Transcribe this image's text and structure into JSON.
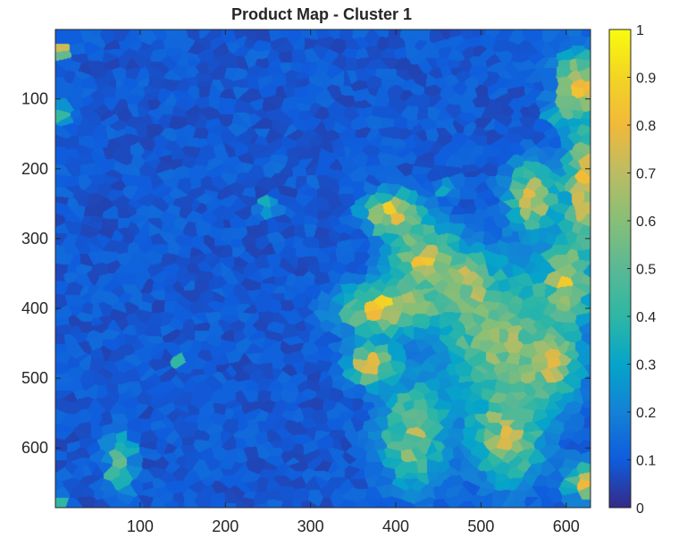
{
  "chart_data": {
    "type": "heatmap",
    "title": "Product Map - Cluster 1",
    "xlabel": "",
    "ylabel": "",
    "xlim": [
      0.5,
      628.5
    ],
    "ylim": [
      0.5,
      685.5
    ],
    "y_reversed": true,
    "x_ticks": [
      100,
      200,
      300,
      400,
      500,
      600
    ],
    "y_ticks": [
      100,
      200,
      300,
      400,
      500,
      600
    ],
    "x_tick_labels": [
      "100",
      "200",
      "300",
      "400",
      "500",
      "600"
    ],
    "y_tick_labels": [
      "100",
      "200",
      "300",
      "400",
      "500",
      "600"
    ],
    "colorbar": {
      "colormap": "parula",
      "clim": [
        0,
        1
      ],
      "ticks": [
        0,
        0.1,
        0.2,
        0.3,
        0.4,
        0.5,
        0.6,
        0.7,
        0.8,
        0.9,
        1
      ],
      "tick_labels": [
        "0",
        "0.1",
        "0.2",
        "0.3",
        "0.4",
        "0.5",
        "0.6",
        "0.7",
        "0.8",
        "0.9",
        "1"
      ]
    },
    "background_level": 0.05,
    "regions": [
      {
        "x": 520,
        "y": 440,
        "rx": 70,
        "ry": 110,
        "value": 0.6
      },
      {
        "x": 390,
        "y": 400,
        "rx": 60,
        "ry": 35,
        "value": 0.8
      },
      {
        "x": 430,
        "y": 330,
        "rx": 45,
        "ry": 55,
        "value": 0.72
      },
      {
        "x": 395,
        "y": 260,
        "rx": 35,
        "ry": 30,
        "value": 0.82
      },
      {
        "x": 560,
        "y": 240,
        "rx": 30,
        "ry": 50,
        "value": 0.75
      },
      {
        "x": 620,
        "y": 230,
        "rx": 25,
        "ry": 90,
        "value": 0.8
      },
      {
        "x": 615,
        "y": 80,
        "rx": 30,
        "ry": 50,
        "value": 0.82
      },
      {
        "x": 600,
        "y": 360,
        "rx": 30,
        "ry": 60,
        "value": 0.75
      },
      {
        "x": 420,
        "y": 580,
        "rx": 40,
        "ry": 80,
        "value": 0.6
      },
      {
        "x": 530,
        "y": 580,
        "rx": 45,
        "ry": 70,
        "value": 0.65
      },
      {
        "x": 580,
        "y": 480,
        "rx": 40,
        "ry": 60,
        "value": 0.65
      },
      {
        "x": 370,
        "y": 480,
        "rx": 30,
        "ry": 30,
        "value": 0.8
      },
      {
        "x": 480,
        "y": 360,
        "rx": 30,
        "ry": 40,
        "value": 0.72
      },
      {
        "x": 620,
        "y": 650,
        "rx": 20,
        "ry": 30,
        "value": 0.72
      },
      {
        "x": 75,
        "y": 620,
        "rx": 15,
        "ry": 45,
        "value": 0.55
      },
      {
        "x": 8,
        "y": 120,
        "rx": 10,
        "ry": 14,
        "value": 0.5
      },
      {
        "x": 8,
        "y": 675,
        "rx": 10,
        "ry": 10,
        "value": 0.95
      },
      {
        "x": 8,
        "y": 30,
        "rx": 8,
        "ry": 8,
        "value": 0.8
      },
      {
        "x": 250,
        "y": 253,
        "rx": 12,
        "ry": 10,
        "value": 0.85
      },
      {
        "x": 590,
        "y": 115,
        "rx": 10,
        "ry": 12,
        "value": 1.0
      },
      {
        "x": 140,
        "y": 475,
        "rx": 8,
        "ry": 6,
        "value": 0.95
      },
      {
        "x": 460,
        "y": 230,
        "rx": 15,
        "ry": 12,
        "value": 0.3
      },
      {
        "x": 250,
        "y": 190,
        "rx": 10,
        "ry": 10,
        "value": 0.25
      }
    ]
  }
}
